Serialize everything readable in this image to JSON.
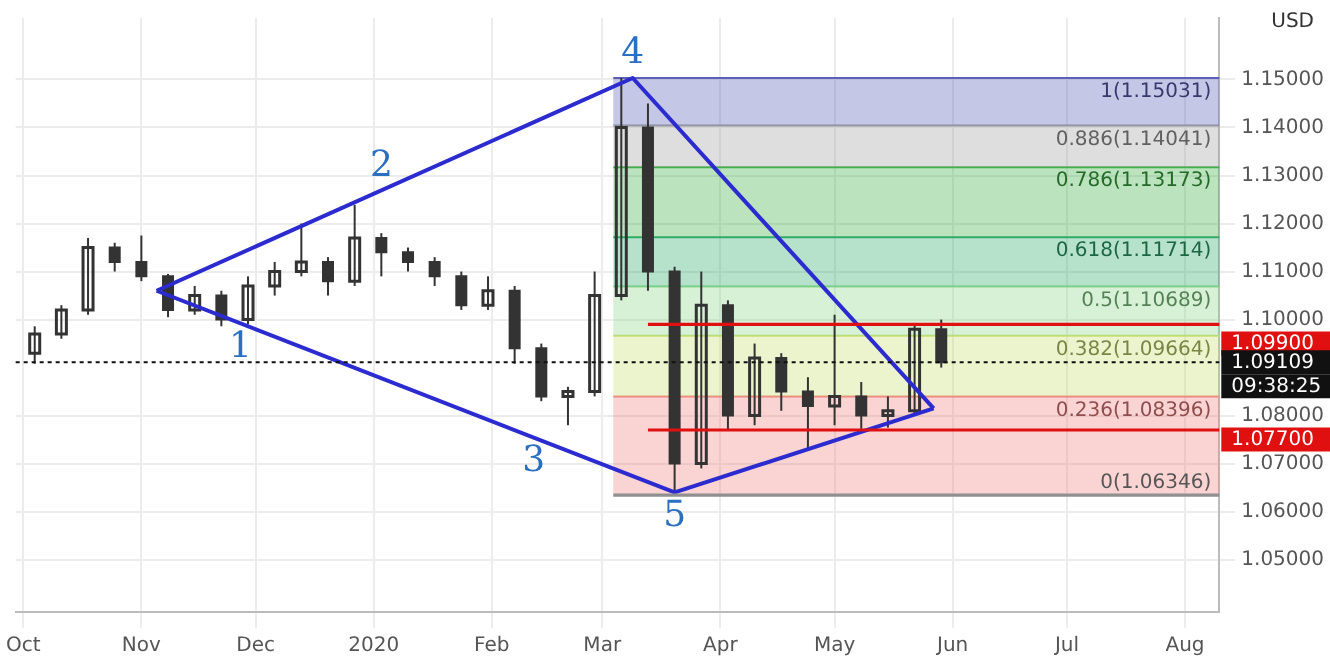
{
  "chart_data": {
    "type": "candlestick",
    "color": "#333333",
    "x": [
      "2019-10-04",
      "2019-10-11",
      "2019-10-18",
      "2019-10-25",
      "2019-11-01",
      "2019-11-08",
      "2019-11-15",
      "2019-11-22",
      "2019-11-29",
      "2019-12-06",
      "2019-12-13",
      "2019-12-20",
      "2019-12-27",
      "2020-01-03",
      "2020-01-10",
      "2020-01-17",
      "2020-01-24",
      "2020-01-31",
      "2020-02-07",
      "2020-02-14",
      "2020-02-21",
      "2020-02-28",
      "2020-03-06",
      "2020-03-13",
      "2020-03-20",
      "2020-03-27",
      "2020-04-03",
      "2020-04-10",
      "2020-04-17",
      "2020-04-24",
      "2020-05-01",
      "2020-05-08",
      "2020-05-15",
      "2020-05-22",
      "2020-05-29"
    ],
    "ohlc": [
      [
        1.093,
        1.0986,
        1.0908,
        1.097
      ],
      [
        1.097,
        1.103,
        1.096,
        1.102
      ],
      [
        1.102,
        1.117,
        1.101,
        1.115
      ],
      [
        1.115,
        1.116,
        1.11,
        1.112
      ],
      [
        1.112,
        1.1175,
        1.108,
        1.109
      ],
      [
        1.109,
        1.1095,
        1.1005,
        1.102
      ],
      [
        1.102,
        1.107,
        1.101,
        1.105
      ],
      [
        1.105,
        1.106,
        1.0986,
        1.1
      ],
      [
        1.1,
        1.109,
        1.099,
        1.107
      ],
      [
        1.107,
        1.112,
        1.105,
        1.11
      ],
      [
        1.11,
        1.12,
        1.109,
        1.112
      ],
      [
        1.112,
        1.113,
        1.105,
        1.108
      ],
      [
        1.108,
        1.1239,
        1.107,
        1.117
      ],
      [
        1.117,
        1.118,
        1.109,
        1.114
      ],
      [
        1.114,
        1.115,
        1.11,
        1.112
      ],
      [
        1.112,
        1.113,
        1.107,
        1.109
      ],
      [
        1.109,
        1.11,
        1.102,
        1.103
      ],
      [
        1.103,
        1.109,
        1.102,
        1.106
      ],
      [
        1.106,
        1.107,
        1.0908,
        1.094
      ],
      [
        1.094,
        1.095,
        1.083,
        1.084
      ],
      [
        1.084,
        1.086,
        1.078,
        1.085
      ],
      [
        1.085,
        1.11,
        1.084,
        1.105
      ],
      [
        1.105,
        1.1503,
        1.104,
        1.14
      ],
      [
        1.14,
        1.145,
        1.106,
        1.11
      ],
      [
        1.11,
        1.111,
        1.0635,
        1.07
      ],
      [
        1.07,
        1.11,
        1.069,
        1.103
      ],
      [
        1.103,
        1.104,
        1.077,
        1.08
      ],
      [
        1.08,
        1.095,
        1.078,
        1.092
      ],
      [
        1.092,
        1.093,
        1.081,
        1.085
      ],
      [
        1.085,
        1.088,
        1.073,
        1.082
      ],
      [
        1.082,
        1.101,
        1.078,
        1.084
      ],
      [
        1.084,
        1.087,
        1.077,
        1.08
      ],
      [
        1.08,
        1.084,
        1.0775,
        1.081
      ],
      [
        1.081,
        1.099,
        1.08,
        1.098
      ],
      [
        1.098,
        1.1,
        1.09,
        1.0911
      ]
    ],
    "series": [
      {
        "type": "line",
        "color": "#2b2bd0",
        "x": [
          "2019-11-05",
          "2020-03-09",
          "2020-05-27"
        ],
        "values": [
          1.106,
          1.1503,
          1.0815
        ]
      },
      {
        "type": "line",
        "color": "#2b2bd0",
        "x": [
          "2019-11-05",
          "2020-03-20",
          "2020-05-27"
        ],
        "values": [
          1.106,
          1.064,
          1.0815
        ]
      }
    ],
    "xlim": [
      "2019-09-29",
      "2020-08-10"
    ],
    "xticks": [
      {
        "value": "2019-10-01",
        "label": "Oct"
      },
      {
        "value": "2019-11-01",
        "label": "Nov"
      },
      {
        "value": "2019-12-01",
        "label": "Dec"
      },
      {
        "value": "2020-01-01",
        "label": "2020"
      },
      {
        "value": "2020-02-01",
        "label": "Feb"
      },
      {
        "value": "2020-03-01",
        "label": "Mar"
      },
      {
        "value": "2020-04-01",
        "label": "Apr"
      },
      {
        "value": "2020-05-01",
        "label": "May"
      },
      {
        "value": "2020-06-01",
        "label": "Jun"
      },
      {
        "value": "2020-07-01",
        "label": "Jul"
      },
      {
        "value": "2020-08-01",
        "label": "Aug"
      }
    ],
    "ylim": [
      1.0391,
      1.1628
    ],
    "yticks": [
      {
        "value": 1.05,
        "label": "1.05000"
      },
      {
        "value": 1.06,
        "label": "1.06000"
      },
      {
        "value": 1.07,
        "label": "1.07000"
      },
      {
        "value": 1.08,
        "label": "1.08000"
      },
      {
        "value": 1.1,
        "label": "1.10000"
      },
      {
        "value": 1.11,
        "label": "1.11000"
      },
      {
        "value": 1.12,
        "label": "1.12000"
      },
      {
        "value": 1.13,
        "label": "1.13000"
      },
      {
        "value": 1.14,
        "label": "1.14000"
      },
      {
        "value": 1.15,
        "label": "1.15000"
      }
    ],
    "bands": [
      {
        "axis": "y",
        "from": 1.06346,
        "to": 1.08396,
        "label": "0.236(1.08396)",
        "color": "#f08080"
      },
      {
        "axis": "y",
        "from": 1.08396,
        "to": 1.09664,
        "label": "0.382(1.09664)",
        "color": "#c8e070"
      },
      {
        "axis": "y",
        "from": 1.09664,
        "to": 1.10689,
        "label": "0.5(1.10689)",
        "color": "#8cd88c"
      },
      {
        "axis": "y",
        "from": 1.10689,
        "to": 1.11714,
        "label": "0.618(1.11714)",
        "color": "#2eab6e"
      },
      {
        "axis": "y",
        "from": 1.11714,
        "to": 1.13173,
        "label": "0.786(1.13173)",
        "color": "#3cb043"
      },
      {
        "axis": "y",
        "from": 1.13173,
        "to": 1.14041,
        "label": "0.886(1.14041)",
        "color": "#a0a0a0"
      },
      {
        "axis": "y",
        "from": 1.14041,
        "to": 1.15031,
        "label": "1(1.15031)",
        "color": "#5a5fb8"
      }
    ],
    "ref_lines": [
      {
        "axis": "y",
        "value": 1.06346,
        "label": "0(1.06346)",
        "color": "#909090"
      },
      {
        "axis": "y",
        "value": 1.099,
        "label": "1.09900",
        "color": "#e01010"
      },
      {
        "axis": "y",
        "value": 1.077,
        "label": "1.07700",
        "color": "#e01010"
      },
      {
        "axis": "y",
        "value": 1.09109,
        "label": "1.09109",
        "color": "#111111",
        "line_style": "dashed"
      }
    ],
    "annotations": [
      "USD",
      "09:38:25",
      {
        "text": "1",
        "x": "2019-11-27",
        "y": 1.0992
      },
      {
        "text": "2",
        "x": "2020-01-03",
        "y": 1.1269
      },
      {
        "text": "3",
        "x": "2020-02-12",
        "y": 1.0754
      },
      {
        "text": "4",
        "x": "2020-03-09",
        "y": 1.1503
      },
      {
        "text": "5",
        "x": "2020-03-20",
        "y": 1.064
      }
    ],
    "grid": true,
    "legend": false
  }
}
